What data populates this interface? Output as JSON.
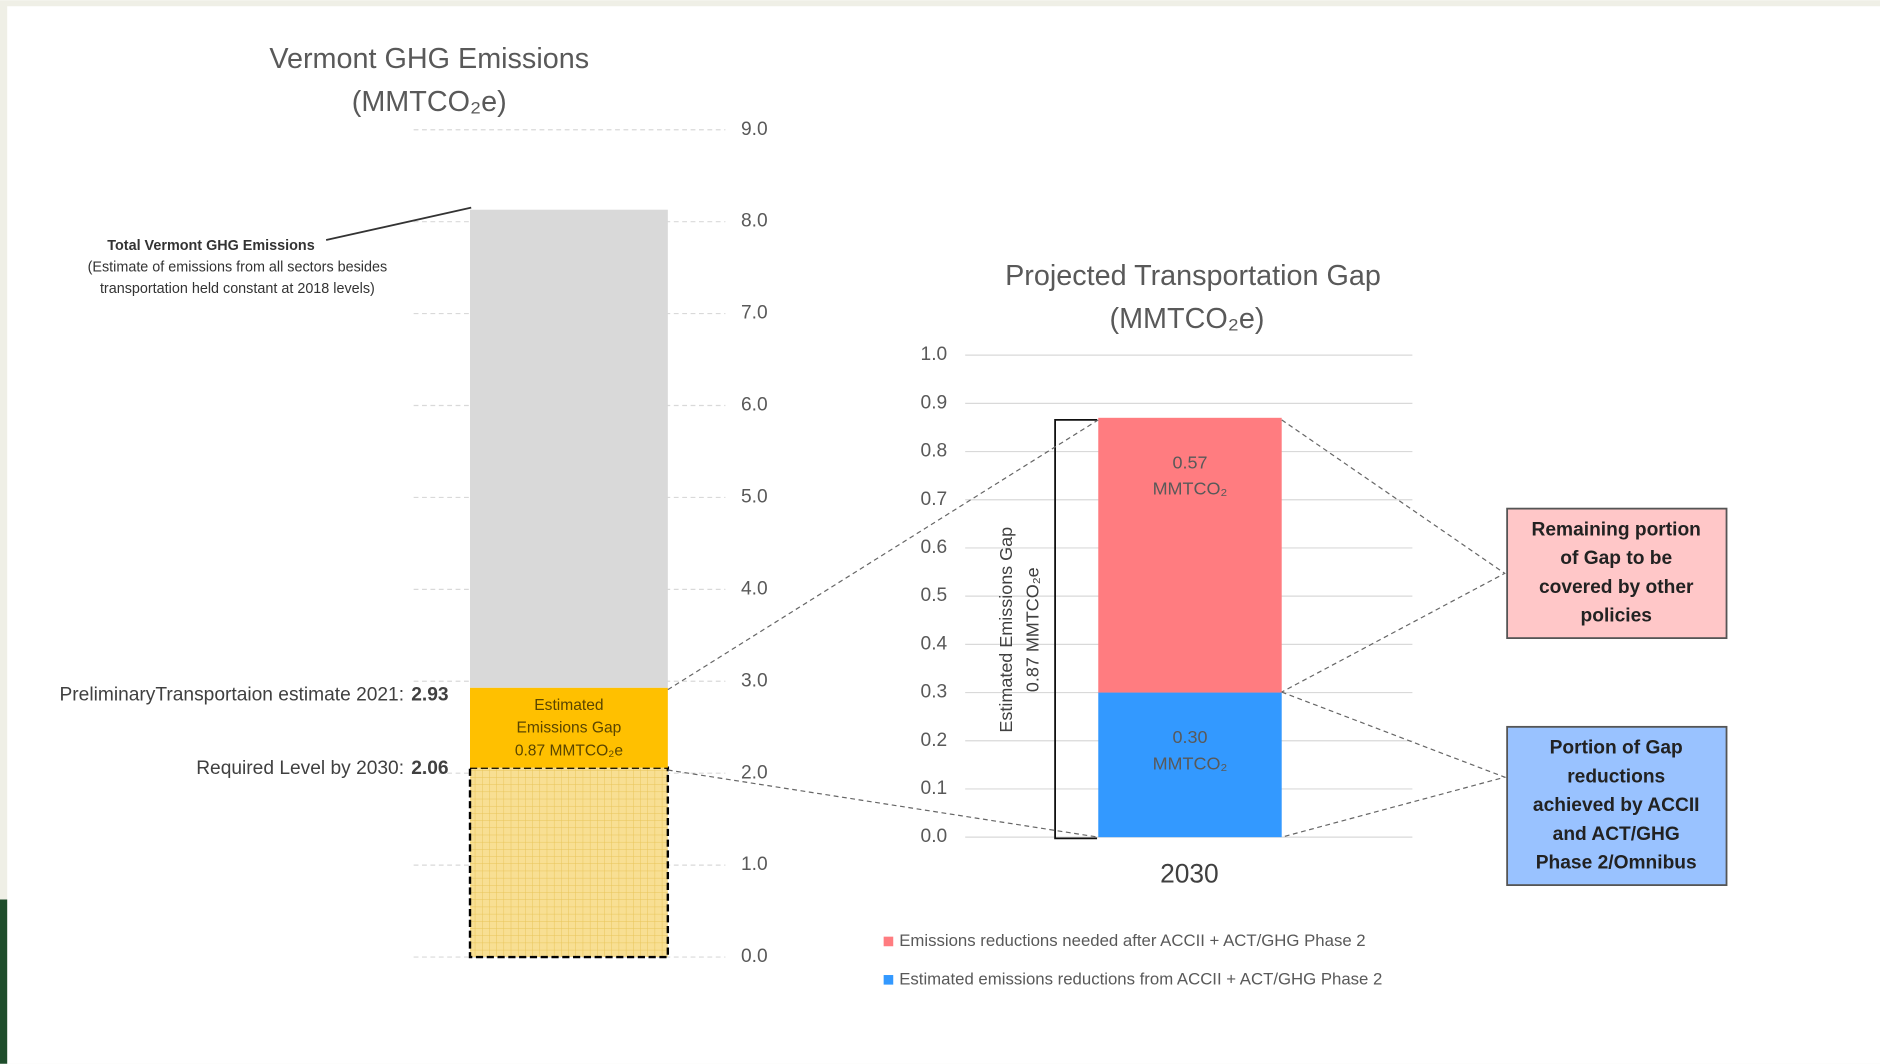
{
  "chart_data": [
    {
      "type": "stacked-bar",
      "title": "Vermont GHG Emissions",
      "subtitle": "(MMTCO₂e)",
      "categories": [
        null
      ],
      "series": [
        {
          "color": "#f8df93",
          "values": [
            2.06
          ]
        },
        {
          "color": "#ffc000",
          "values": [
            0.87
          ]
        },
        {
          "color": "#d9d9d9",
          "values": [
            5.2
          ]
        }
      ],
      "ylim": [
        0,
        9
      ],
      "yticks": [
        {
          "value": 0,
          "label": "0.0"
        },
        {
          "value": 1,
          "label": "1.0"
        },
        {
          "value": 2,
          "label": "2.0"
        },
        {
          "value": 3,
          "label": "3.0"
        },
        {
          "value": 4,
          "label": "4.0"
        },
        {
          "value": 5,
          "label": "5.0"
        },
        {
          "value": 6,
          "label": "6.0"
        },
        {
          "value": 7,
          "label": "7.0"
        },
        {
          "value": 8,
          "label": "8.0"
        },
        {
          "value": 9,
          "label": "9.0"
        }
      ],
      "grid": true,
      "gap_label": [
        "Estimated",
        "Emissions Gap",
        "0.87 MMTCO₂e"
      ],
      "total_note_title": "Total Vermont GHG Emissions",
      "total_note": [
        "(Estimate of emissions from all sectors besides",
        "transportation held constant at 2018 levels)"
      ],
      "estimate_label": "PreliminaryTransportaion estimate 2021:",
      "estimate_value": "2.93",
      "required_label": "Required Level by 2030:",
      "required_value": "2.06"
    },
    {
      "type": "stacked-bar",
      "title": "Projected Transportation Gap",
      "subtitle": "(MMTCO₂e)",
      "categories": [
        "2030"
      ],
      "series": [
        {
          "name": "Emissions reductions needed after ACCII + ACT/GHG Phase 2",
          "color": "#ff7c80",
          "values": [
            0.57
          ],
          "value_labels": [
            "0.57 MMTCO₂"
          ]
        },
        {
          "name": "Estimated emissions reductions from ACCII + ACT/GHG Phase 2",
          "color": "#3399ff",
          "values": [
            0.3
          ],
          "value_labels": [
            "0.30 MMTCO₂"
          ]
        }
      ],
      "ylim": [
        0,
        1
      ],
      "yticks": [
        {
          "value": 0,
          "label": "0.0"
        },
        0.1,
        0.2,
        0.3,
        0.4,
        0.5,
        0.6,
        0.7,
        0.8,
        0.9,
        {
          "value": 1,
          "label": "1.0"
        }
      ],
      "grid": true,
      "bracket_label": [
        "Estimated Emissions Gap",
        "0.87 MMTCO₂e"
      ],
      "remaining_box": [
        "Remaining portion",
        "of Gap to be",
        "covered by other",
        "policies"
      ],
      "achieved_box": [
        "Portion of Gap",
        "reductions",
        "achieved by ACCII",
        "and ACT/GHG",
        "Phase 2/Omnibus"
      ]
    }
  ]
}
